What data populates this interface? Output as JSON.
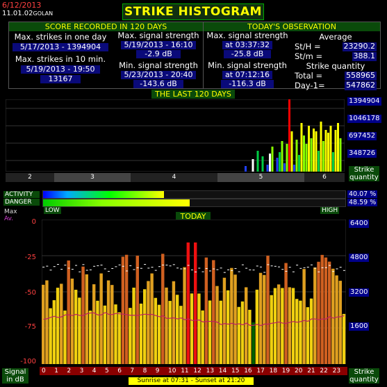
{
  "header": {
    "date": "6/12/2013",
    "time": "11.01.02",
    "location": "GOLAN",
    "title": "STRIKE HISTOGRAM"
  },
  "score": {
    "heading": "SCORE RECORDED IN 120 DAYS",
    "max_strikes_day_label": "Max. strikes in one day",
    "max_strikes_day_value": "5/17/2013 - 1394904",
    "max_strikes_10min_label": "Max. strikes in 10 min.",
    "max_strikes_10min_date": "5/19/2013 - 19:50",
    "max_strikes_10min_value": "13167",
    "max_signal_label": "Max. signal strength",
    "max_signal_date": "5/19/2013 - 16:10",
    "max_signal_value": "-2.9 dB",
    "min_signal_label": "Min. signal strength",
    "min_signal_date": "5/23/2013 - 20:40",
    "min_signal_value": "-143.6 dB"
  },
  "today": {
    "heading": "TODAY'S OBSERVATION",
    "max_signal_label": "Max. signal strength",
    "max_signal_time": "at 03:37:32",
    "max_signal_value": "-25.8 dB",
    "min_signal_label": "Min. signal strength",
    "min_signal_time": "at 07:12:16",
    "min_signal_value": "-116.3 dB",
    "average_label": "Average",
    "sth_label": "St/H =",
    "sth_value": "23290.2",
    "stm_label": "St/m =",
    "stm_value": "388.1",
    "quantity_label": "Strike quantity",
    "total_label": "Total  =",
    "total_value": "558965",
    "day1_label": "Day-1=",
    "day1_value": "547862"
  },
  "last120": {
    "heading": "THE LAST 120 DAYS",
    "y_labels": [
      "1394904",
      "1046178",
      "697452",
      "348726"
    ],
    "y_title_1": "Strike",
    "y_title_2": "quantity",
    "months": [
      "2",
      "3",
      "4",
      "5",
      "6"
    ]
  },
  "activity": {
    "activity_label": "ACTIVITY",
    "danger_label": "DANGER",
    "low_label": "LOW",
    "high_label": "HIGH",
    "activity_value": "40.07 %",
    "danger_value": "48.59 %",
    "activity_pct": 40.07,
    "danger_pct": 48.59
  },
  "chart_data": {
    "type": "bar",
    "title": "TODAY",
    "xlabel": "",
    "hours": [
      "0",
      "1",
      "2",
      "3",
      "4",
      "5",
      "6",
      "7",
      "8",
      "9",
      "10",
      "11",
      "12",
      "13",
      "14",
      "15",
      "16",
      "17",
      "18",
      "19",
      "20",
      "21",
      "22",
      "23"
    ],
    "y_left": [
      "0",
      "-25",
      "-50",
      "-75",
      "-100"
    ],
    "y_right": [
      "6400",
      "4800",
      "3200",
      "1600"
    ],
    "ylim_db": [
      -100,
      0
    ],
    "ylim_quantity": [
      0,
      6400
    ],
    "legend_max": "Max",
    "legend_av": "Av.",
    "left_title_1": "Signal",
    "left_title_2": "in dB",
    "right_title_1": "Strike",
    "right_title_2": "quantity",
    "sun_text": "Sunrise at 07:31  -  Sunset at 21:20"
  }
}
